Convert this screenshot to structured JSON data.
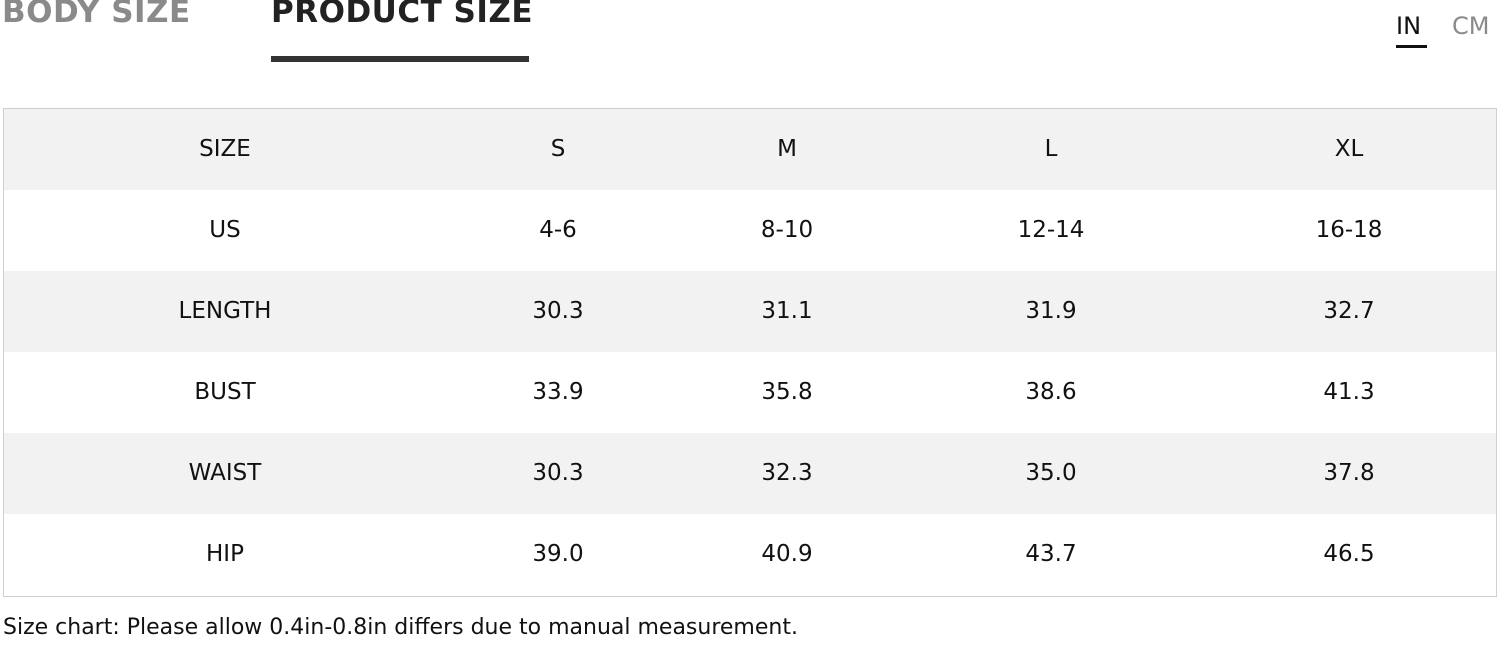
{
  "tabs": [
    "BODY SIZE",
    "PRODUCT SIZE"
  ],
  "units": [
    "IN",
    "CM"
  ],
  "table": {
    "header": [
      "SIZE",
      "S",
      "M",
      "L",
      "XL"
    ],
    "rows": [
      [
        "US",
        "4-6",
        "8-10",
        "12-14",
        "16-18"
      ],
      [
        "LENGTH",
        "30.3",
        "31.1",
        "31.9",
        "32.7"
      ],
      [
        "BUST",
        "33.9",
        "35.8",
        "38.6",
        "41.3"
      ],
      [
        "WAIST",
        "30.3",
        "32.3",
        "35.0",
        "37.8"
      ],
      [
        "HIP",
        "39.0",
        "40.9",
        "43.7",
        "46.5"
      ]
    ]
  },
  "note": "Size chart: Please allow 0.4in-0.8in differs due to manual measurement."
}
